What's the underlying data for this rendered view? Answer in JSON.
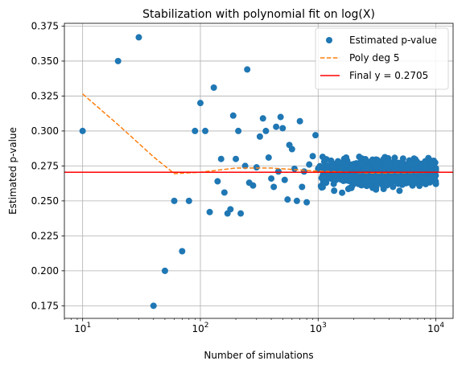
{
  "chart_data": {
    "type": "scatter",
    "title": "Stabilization with polynomial fit on log(X)",
    "xlabel": "Number of simulations",
    "ylabel": "Estimated p-value",
    "xscale": "log",
    "xlim": [
      7,
      14000
    ],
    "ylim": [
      0.166,
      0.377
    ],
    "x_ticks": [
      {
        "value": 10,
        "base": "10",
        "exp": "1"
      },
      {
        "value": 100,
        "base": "10",
        "exp": "2"
      },
      {
        "value": 1000,
        "base": "10",
        "exp": "3"
      },
      {
        "value": 10000,
        "base": "10",
        "exp": "4"
      }
    ],
    "y_ticks": [
      0.175,
      0.2,
      0.225,
      0.25,
      0.275,
      0.3,
      0.325,
      0.35,
      0.375
    ],
    "y_tick_labels": [
      "0.175",
      "0.200",
      "0.225",
      "0.250",
      "0.275",
      "0.300",
      "0.325",
      "0.350",
      "0.375"
    ],
    "grid": true,
    "legend_position": "top-right",
    "colors": {
      "scatter": "#1f77b4",
      "poly": "#ff7f0e",
      "final": "#ff0000"
    },
    "series": [
      {
        "name": "Estimated p-value",
        "kind": "scatter",
        "points": [
          [
            10,
            0.3
          ],
          [
            20,
            0.35
          ],
          [
            30,
            0.367
          ],
          [
            40,
            0.175
          ],
          [
            50,
            0.2
          ],
          [
            60,
            0.25
          ],
          [
            70,
            0.214
          ],
          [
            80,
            0.25
          ],
          [
            90,
            0.3
          ],
          [
            100,
            0.32
          ],
          [
            110,
            0.3
          ],
          [
            120,
            0.242
          ],
          [
            130,
            0.331
          ],
          [
            140,
            0.264
          ],
          [
            150,
            0.28
          ],
          [
            160,
            0.256
          ],
          [
            170,
            0.241
          ],
          [
            180,
            0.244
          ],
          [
            190,
            0.311
          ],
          [
            200,
            0.28
          ],
          [
            210,
            0.3
          ],
          [
            220,
            0.241
          ],
          [
            250,
            0.344
          ],
          [
            240,
            0.275
          ],
          [
            260,
            0.263
          ],
          [
            280,
            0.261
          ],
          [
            300,
            0.274
          ],
          [
            320,
            0.296
          ],
          [
            340,
            0.309
          ],
          [
            360,
            0.3
          ],
          [
            380,
            0.281
          ],
          [
            400,
            0.266
          ],
          [
            420,
            0.26
          ],
          [
            440,
            0.303
          ],
          [
            460,
            0.271
          ],
          [
            480,
            0.31
          ],
          [
            500,
            0.302
          ],
          [
            520,
            0.265
          ],
          [
            550,
            0.251
          ],
          [
            570,
            0.29
          ],
          [
            600,
            0.287
          ],
          [
            630,
            0.273
          ],
          [
            660,
            0.25
          ],
          [
            700,
            0.307
          ],
          [
            730,
            0.26
          ],
          [
            760,
            0.271
          ],
          [
            800,
            0.249
          ],
          [
            840,
            0.276
          ],
          [
            900,
            0.282
          ],
          [
            950,
            0.297
          ],
          [
            1000,
            0.273
          ]
        ],
        "dense_region": {
          "x_range": [
            1000,
            10000
          ],
          "y_range": [
            0.244,
            0.292
          ],
          "count": 900
        }
      },
      {
        "name": "Poly deg 5",
        "kind": "line",
        "style": "dashed",
        "x": [
          10,
          20,
          40,
          60,
          100,
          200,
          400,
          1000,
          3000,
          10000
        ],
        "y": [
          0.3265,
          0.3045,
          0.2815,
          0.2695,
          0.2705,
          0.2735,
          0.2735,
          0.2712,
          0.27,
          0.2705
        ]
      },
      {
        "name": "Final y = 0.2705",
        "kind": "hline",
        "y": 0.2705
      }
    ]
  }
}
